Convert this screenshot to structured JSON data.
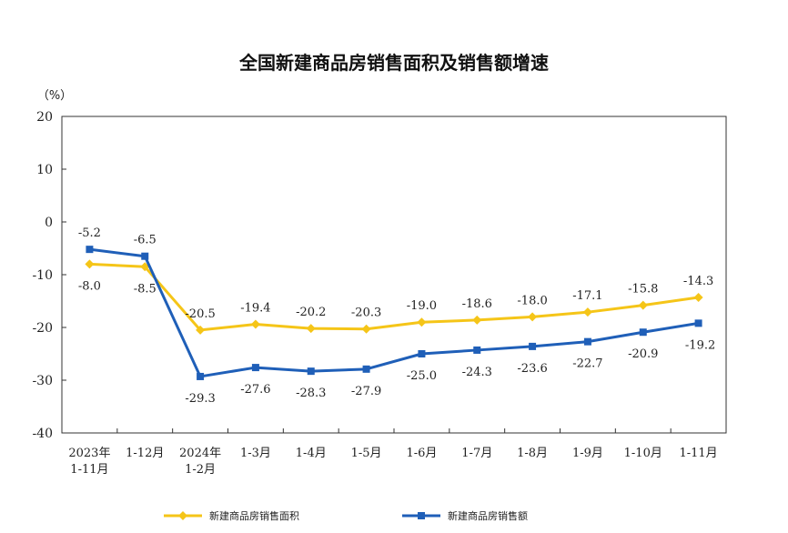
{
  "chart_data": {
    "type": "line",
    "title": "全国新建商品房销售面积及销售额增速",
    "ylabel": "（%）",
    "xlabel": "",
    "ylim": [
      -40,
      20
    ],
    "yticks": [
      "20",
      "10",
      "0",
      "-10",
      "-20",
      "-30",
      "-40"
    ],
    "grid": false,
    "legend_position": "bottom",
    "categories": [
      [
        "2023年",
        "1-11月"
      ],
      [
        "1-12月"
      ],
      [
        "2024年",
        "1-2月"
      ],
      [
        "1-3月"
      ],
      [
        "1-4月"
      ],
      [
        "1-5月"
      ],
      [
        "1-6月"
      ],
      [
        "1-7月"
      ],
      [
        "1-8月"
      ],
      [
        "1-9月"
      ],
      [
        "1-10月"
      ],
      [
        "1-11月"
      ]
    ],
    "series": [
      {
        "name": "新建商品房销售面积",
        "color": "#F5C518",
        "marker": "diamond",
        "values": [
          -8.0,
          -8.5,
          -20.5,
          -19.4,
          -20.2,
          -20.3,
          -19.0,
          -18.6,
          -18.0,
          -17.1,
          -15.8,
          -14.3
        ],
        "labels": [
          "-8.0",
          "-8.5",
          "-20.5",
          "-19.4",
          "-20.2",
          "-20.3",
          "-19.0",
          "-18.6",
          "-18.0",
          "-17.1",
          "-15.8",
          "-14.3"
        ]
      },
      {
        "name": "新建商品房销售额",
        "color": "#1F5FB8",
        "marker": "square",
        "values": [
          -5.2,
          -6.5,
          -29.3,
          -27.6,
          -28.3,
          -27.9,
          -25.0,
          -24.3,
          -23.6,
          -22.7,
          -20.9,
          -19.2
        ],
        "labels": [
          "-5.2",
          "-6.5",
          "-29.3",
          "-27.6",
          "-28.3",
          "-27.9",
          "-25.0",
          "-24.3",
          "-23.6",
          "-22.7",
          "-20.9",
          "-19.2"
        ]
      }
    ]
  }
}
